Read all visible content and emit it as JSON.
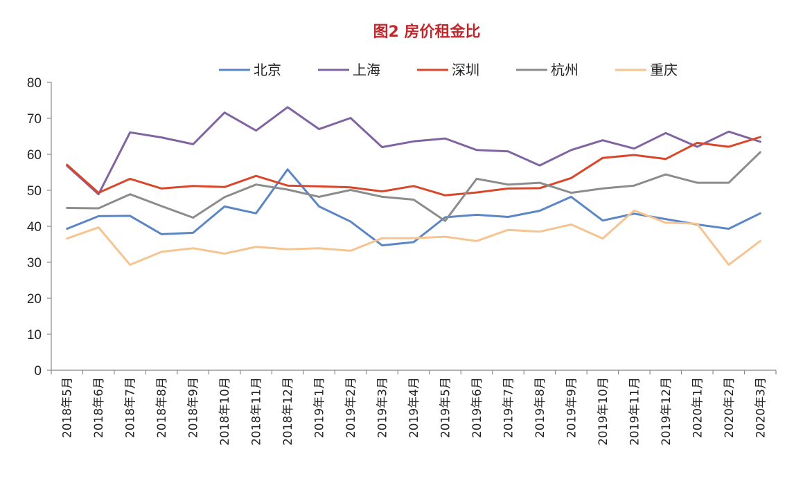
{
  "chart_data": {
    "type": "line",
    "title": "图2 房价租金比",
    "legend_position": "top-center",
    "grid": false,
    "ylim": [
      0,
      80
    ],
    "yticks": [
      0,
      10,
      20,
      30,
      40,
      50,
      60,
      70,
      80
    ],
    "categories": [
      "2018年5月",
      "2018年6月",
      "2018年7月",
      "2018年8月",
      "2018年9月",
      "2018年10月",
      "2018年11月",
      "2018年12月",
      "2019年1月",
      "2019年2月",
      "2019年3月",
      "2019年4月",
      "2019年5月",
      "2019年6月",
      "2019年7月",
      "2019年8月",
      "2019年9月",
      "2019年10月",
      "2019年11月",
      "2019年12月",
      "2020年1月",
      "2020年2月",
      "2020年3月"
    ],
    "series": [
      {
        "name": "北京",
        "color": "#5b86c5",
        "values": [
          39.3,
          42.8,
          42.9,
          37.8,
          38.2,
          45.5,
          43.6,
          55.8,
          45.5,
          41.3,
          34.7,
          35.6,
          42.5,
          43.2,
          42.6,
          44.3,
          48.2,
          41.6,
          43.5,
          42.0,
          40.5,
          39.3,
          43.6
        ]
      },
      {
        "name": "上海",
        "color": "#8064a2",
        "values": [
          56.8,
          48.9,
          66.1,
          64.7,
          62.8,
          71.6,
          66.6,
          73.1,
          67.0,
          70.1,
          62.0,
          63.6,
          64.4,
          61.2,
          60.8,
          56.9,
          61.2,
          63.9,
          61.6,
          65.9,
          62.1,
          66.3,
          63.5
        ]
      },
      {
        "name": "深圳",
        "color": "#d9472b",
        "values": [
          57.1,
          49.3,
          53.2,
          50.5,
          51.2,
          50.9,
          54.0,
          51.3,
          51.1,
          50.8,
          49.7,
          51.2,
          48.6,
          49.4,
          50.5,
          50.6,
          53.4,
          59.0,
          59.8,
          58.7,
          63.2,
          62.1,
          64.8
        ]
      },
      {
        "name": "杭州",
        "color": "#8c8c8c",
        "values": [
          45.1,
          45.0,
          48.9,
          45.6,
          42.4,
          48.1,
          51.6,
          50.2,
          48.2,
          50.1,
          48.2,
          47.4,
          41.5,
          53.2,
          51.6,
          52.1,
          49.3,
          50.5,
          51.3,
          54.4,
          52.1,
          52.1,
          60.6
        ]
      },
      {
        "name": "重庆",
        "color": "#f6c491",
        "values": [
          36.6,
          39.7,
          29.3,
          32.9,
          33.9,
          32.4,
          34.3,
          33.6,
          33.9,
          33.2,
          36.7,
          36.7,
          37.1,
          35.9,
          39.0,
          38.5,
          40.5,
          36.6,
          44.4,
          41.0,
          40.7,
          29.3,
          35.9
        ]
      }
    ]
  }
}
